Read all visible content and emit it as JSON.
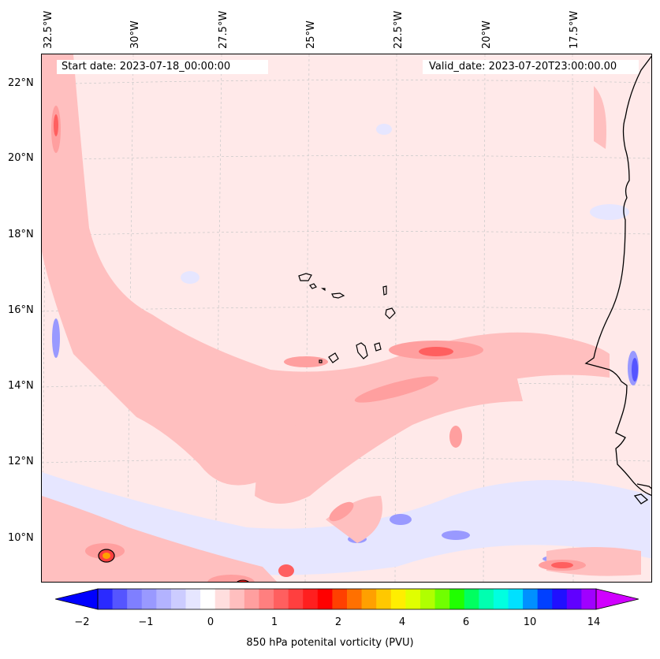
{
  "map": {
    "header_left": "Start date: 2023-07-18_00:00:00",
    "header_right": "Valid_date: 2023-07-20T23:00:00.00",
    "lon_labels": [
      "32.5°W",
      "30°W",
      "27.5°W",
      "25°W",
      "22.5°W",
      "20°W",
      "17.5°W"
    ],
    "lat_labels": [
      "22°N",
      "20°N",
      "18°N",
      "16°N",
      "14°N",
      "12°N",
      "10°N"
    ],
    "background_color": "#ffe9e9",
    "coastline_color": "#000000",
    "gridline_color": "#c8c8c8"
  },
  "colorbar": {
    "label": "850 hPa potenital vorticity (PVU)",
    "ticks": [
      "−2",
      "−1",
      "0",
      "1",
      "2",
      "4",
      "6",
      "10",
      "14"
    ],
    "colors": [
      "#0000ff",
      "#2a2aff",
      "#5555ff",
      "#7f7fff",
      "#9999ff",
      "#b3b3ff",
      "#ccccff",
      "#e6e6ff",
      "#ffffff",
      "#ffdede",
      "#ffbfbf",
      "#ff9f9f",
      "#ff7f7f",
      "#ff5f5f",
      "#ff3f3f",
      "#ff1f1f",
      "#ff0000",
      "#ff4000",
      "#ff7000",
      "#ffa000",
      "#ffc800",
      "#ffee00",
      "#e0ff00",
      "#b0ff00",
      "#70ff00",
      "#20ff00",
      "#00ff60",
      "#00ffb0",
      "#00ffe0",
      "#00e0ff",
      "#0090ff",
      "#0040ff",
      "#2010ff",
      "#6000ff",
      "#a000ff",
      "#d000ff"
    ]
  }
}
